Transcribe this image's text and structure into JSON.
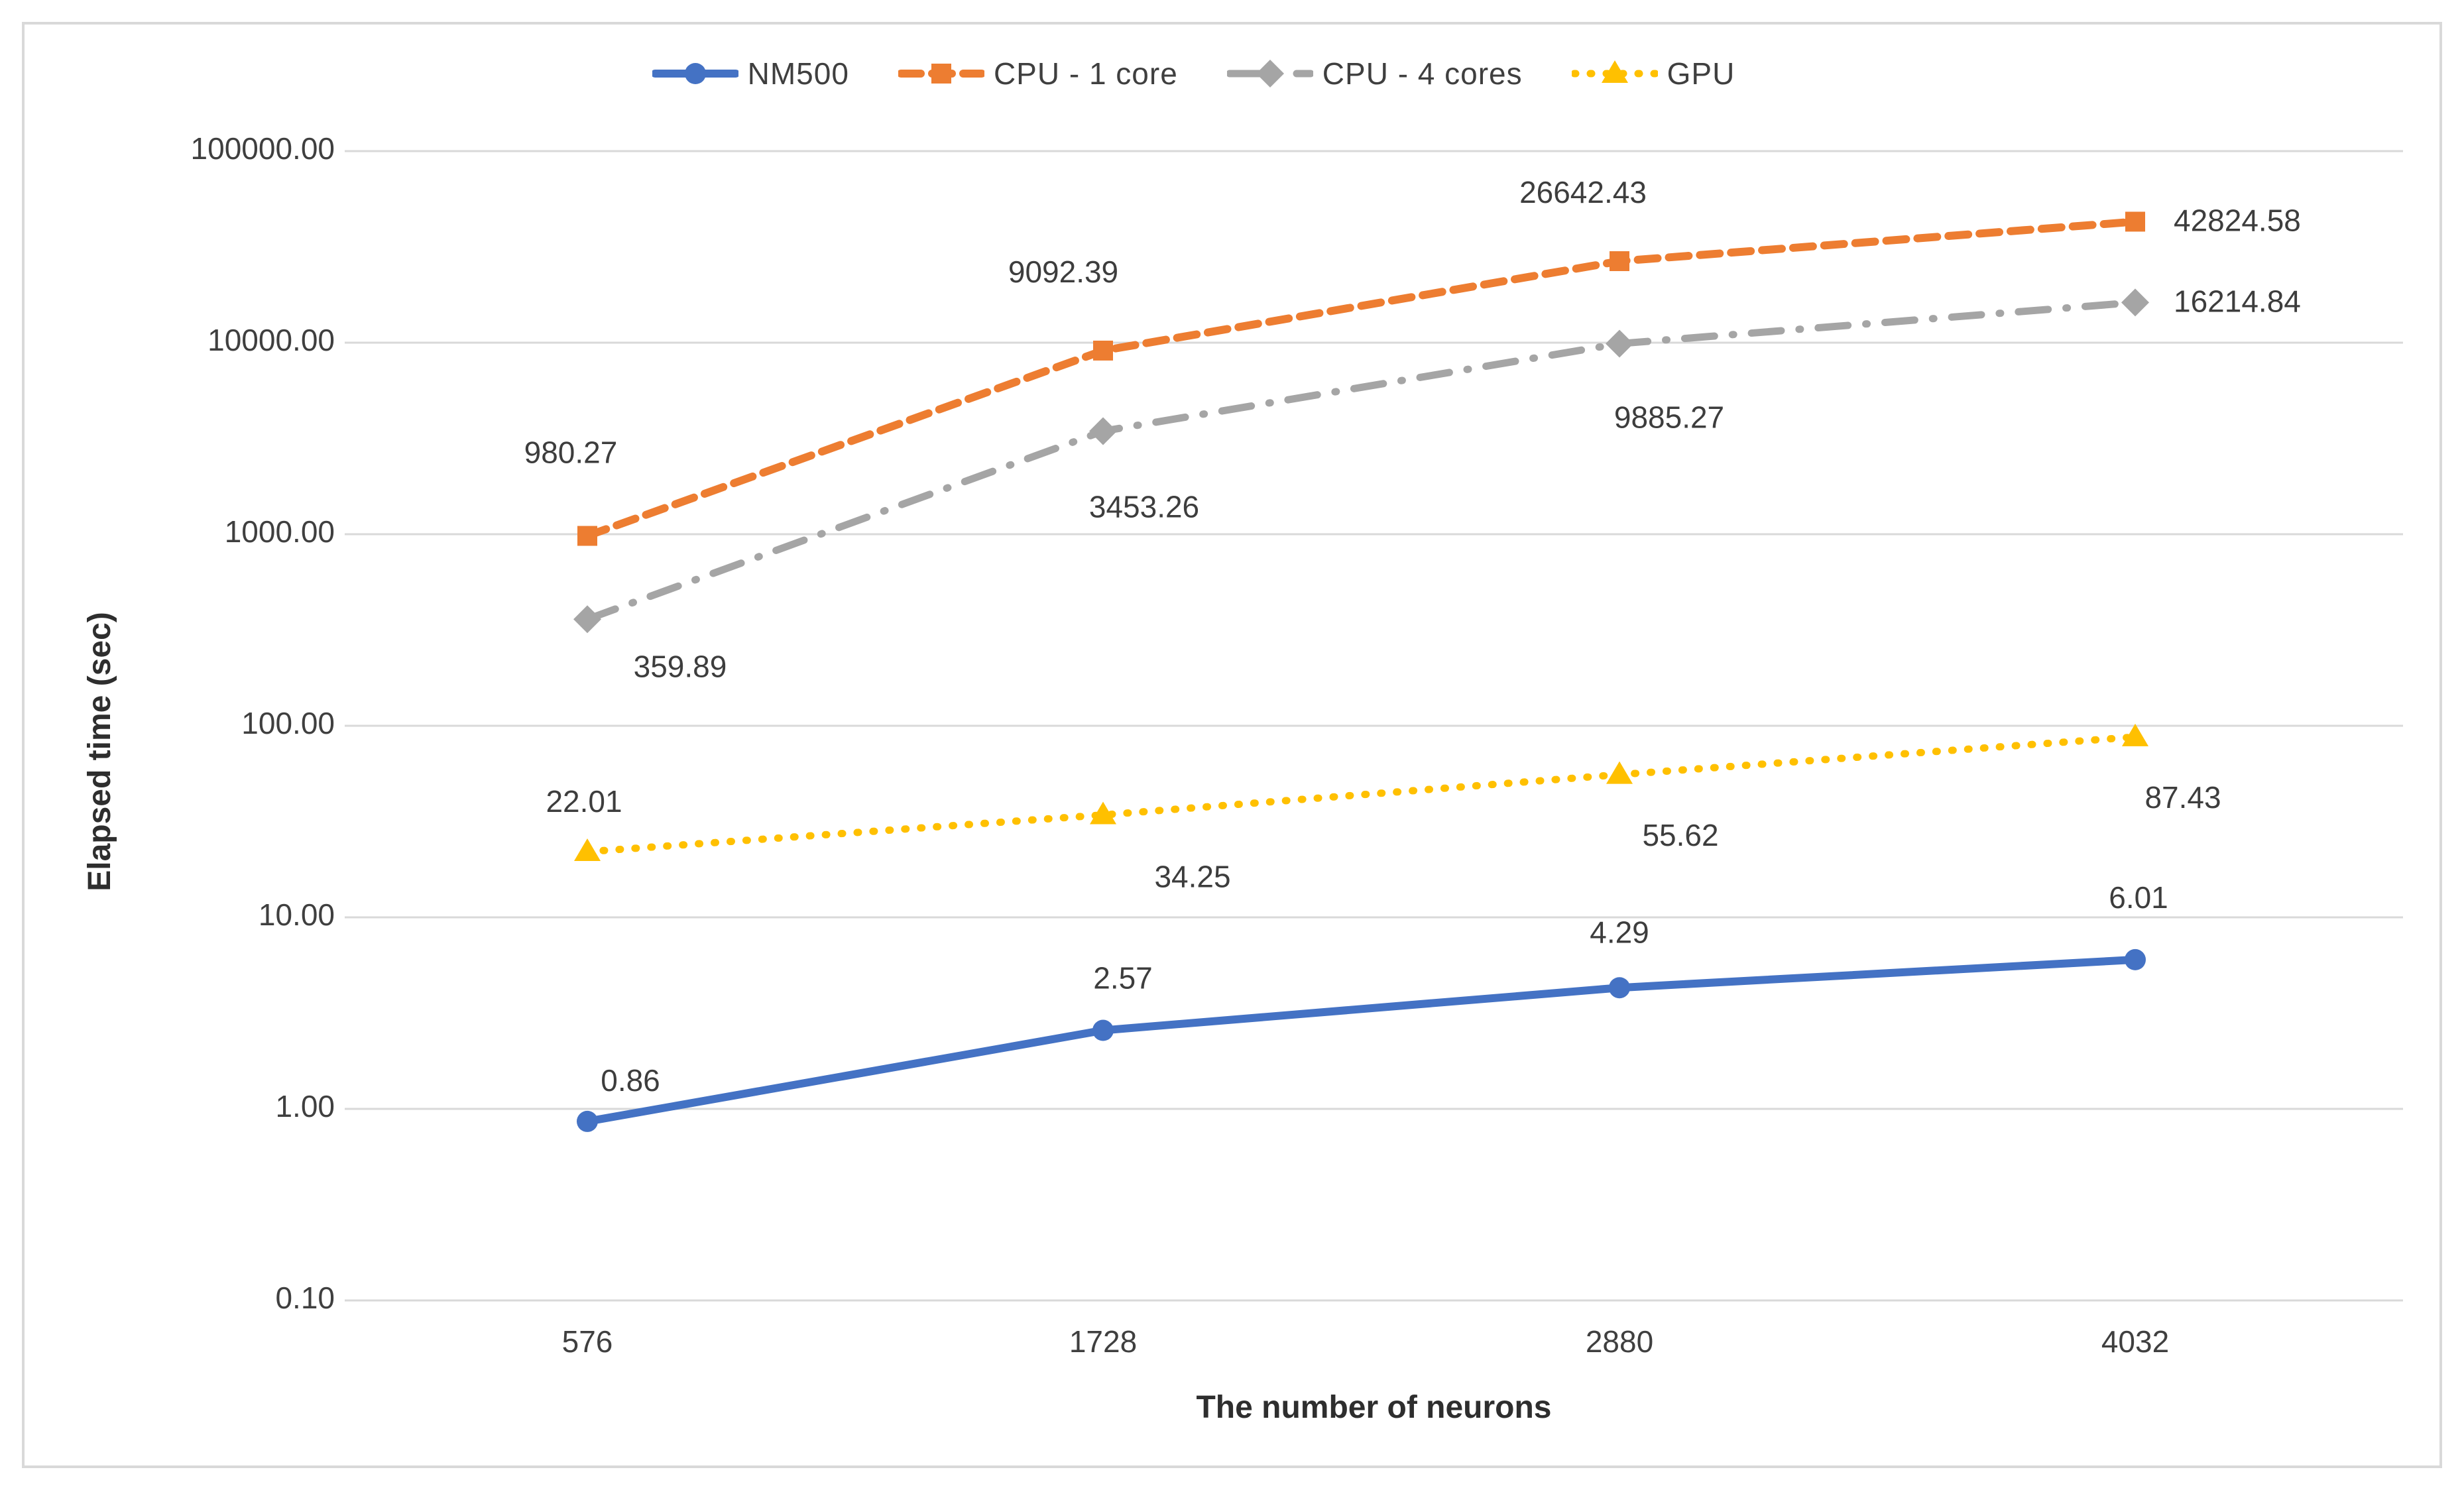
{
  "chart_data": {
    "type": "line",
    "title": "",
    "xlabel": "The number of neurons",
    "ylabel": "Elapsed time (sec)",
    "categories": [
      "576",
      "1728",
      "2880",
      "4032"
    ],
    "y_scale": "log",
    "ylim": [
      0.1,
      100000
    ],
    "y_ticks": [
      "100000.00",
      "10000.00",
      "1000.00",
      "100.00",
      "10.00",
      "1.00",
      "0.10"
    ],
    "y_tick_values": [
      100000,
      10000,
      1000,
      100,
      10,
      1,
      0.1
    ],
    "grid": true,
    "legend_position": "top-center",
    "series": [
      {
        "name": "NM500",
        "color": "#4472C4",
        "line_style": "solid",
        "marker": "circle",
        "values": [
          0.86,
          2.57,
          4.29,
          6.01
        ],
        "labels": [
          "0.86",
          "2.57",
          "4.29",
          "6.01"
        ]
      },
      {
        "name": "CPU - 1 core",
        "color": "#ED7D31",
        "line_style": "dashed",
        "marker": "square",
        "values": [
          980.27,
          9092.39,
          26642.43,
          42824.58
        ],
        "labels": [
          "980.27",
          "9092.39",
          "26642.43",
          "42824.58"
        ]
      },
      {
        "name": "CPU - 4 cores",
        "color": "#A5A5A5",
        "line_style": "dash-dot",
        "marker": "diamond",
        "values": [
          359.89,
          3453.26,
          9885.27,
          16214.84
        ],
        "labels": [
          "359.89",
          "3453.26",
          "9885.27",
          "16214.84"
        ]
      },
      {
        "name": "GPU",
        "color": "#FFC000",
        "line_style": "dotted",
        "marker": "triangle",
        "values": [
          22.01,
          34.25,
          55.62,
          87.43
        ],
        "labels": [
          "22.01",
          "34.25",
          "55.62",
          "87.43"
        ]
      }
    ],
    "colors": {
      "grid": "#D9D9D9",
      "frame": "#D9D9D9",
      "tick_text": "#3f3f3f",
      "data_label_text": "#3d3d3d",
      "axis_title_text": "#2e2e2e",
      "background": "#FFFFFF"
    }
  }
}
